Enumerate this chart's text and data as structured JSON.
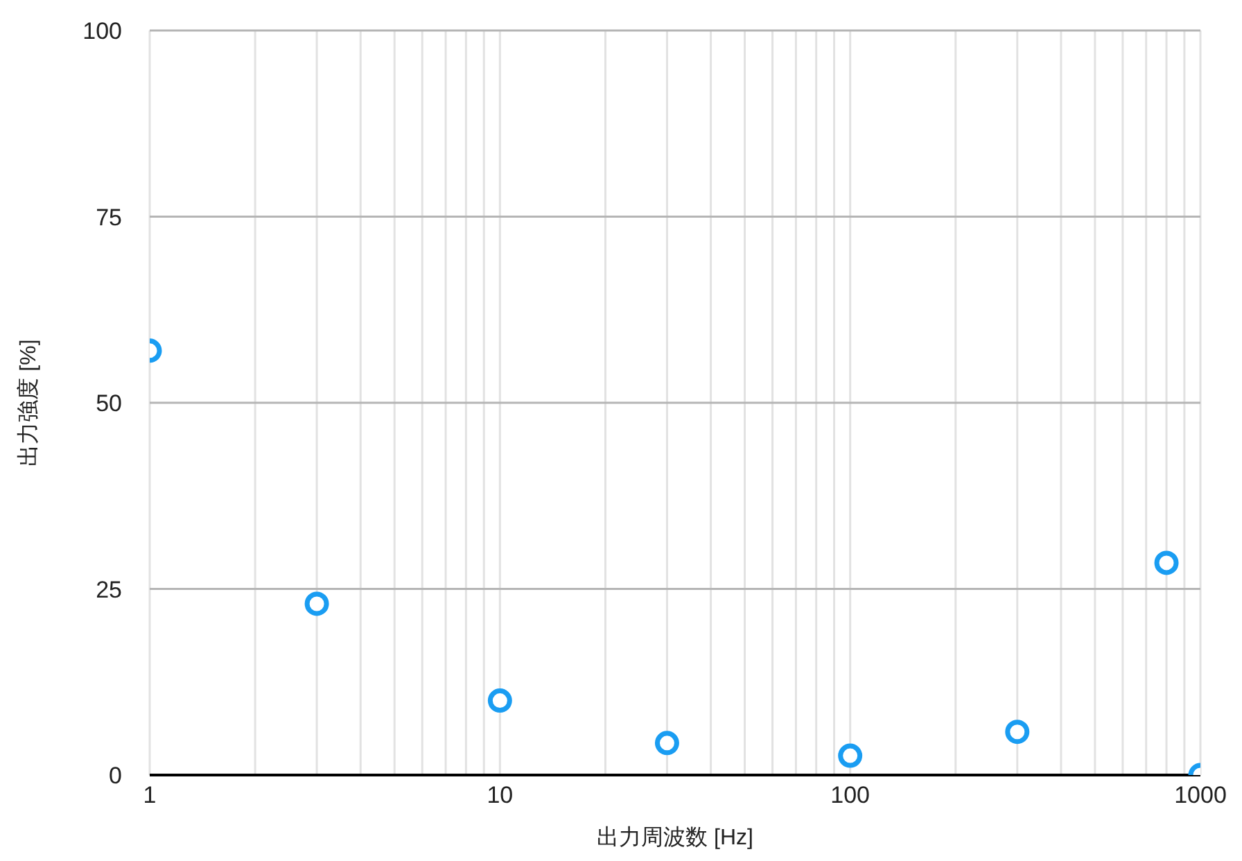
{
  "chart_data": {
    "type": "scatter",
    "xlabel": "出力周波数 [Hz]",
    "ylabel": "出力強度 [%]",
    "x": [
      1,
      3,
      10,
      30,
      100,
      300,
      800,
      1000
    ],
    "series": [
      {
        "color": "#1a9df2",
        "values": [
          57,
          23,
          10,
          4.3,
          2.6,
          5.8,
          28.5,
          0
        ]
      }
    ],
    "log": "x",
    "xlim": [
      1,
      1000
    ],
    "xticks": [
      1,
      {
        "value": 2,
        "label": null
      },
      {
        "value": 3,
        "label": null
      },
      {
        "value": 4,
        "label": null
      },
      {
        "value": 5,
        "label": null
      },
      {
        "value": 6,
        "label": null
      },
      {
        "value": 7,
        "label": null
      },
      {
        "value": 8,
        "label": null
      },
      {
        "value": 9,
        "label": null
      },
      10,
      {
        "value": 20,
        "label": null
      },
      {
        "value": 30,
        "label": null
      },
      {
        "value": 40,
        "label": null
      },
      {
        "value": 50,
        "label": null
      },
      {
        "value": 60,
        "label": null
      },
      {
        "value": 70,
        "label": null
      },
      {
        "value": 80,
        "label": null
      },
      {
        "value": 90,
        "label": null
      },
      100,
      {
        "value": 200,
        "label": null
      },
      {
        "value": 300,
        "label": null
      },
      {
        "value": 400,
        "label": null
      },
      {
        "value": 500,
        "label": null
      },
      {
        "value": 600,
        "label": null
      },
      {
        "value": 700,
        "label": null
      },
      {
        "value": 800,
        "label": null
      },
      {
        "value": 900,
        "label": null
      },
      1000
    ],
    "ylim": [
      0,
      100
    ],
    "yticks": [
      0,
      25,
      50,
      75,
      100
    ],
    "grid": true,
    "marker": "circle"
  }
}
